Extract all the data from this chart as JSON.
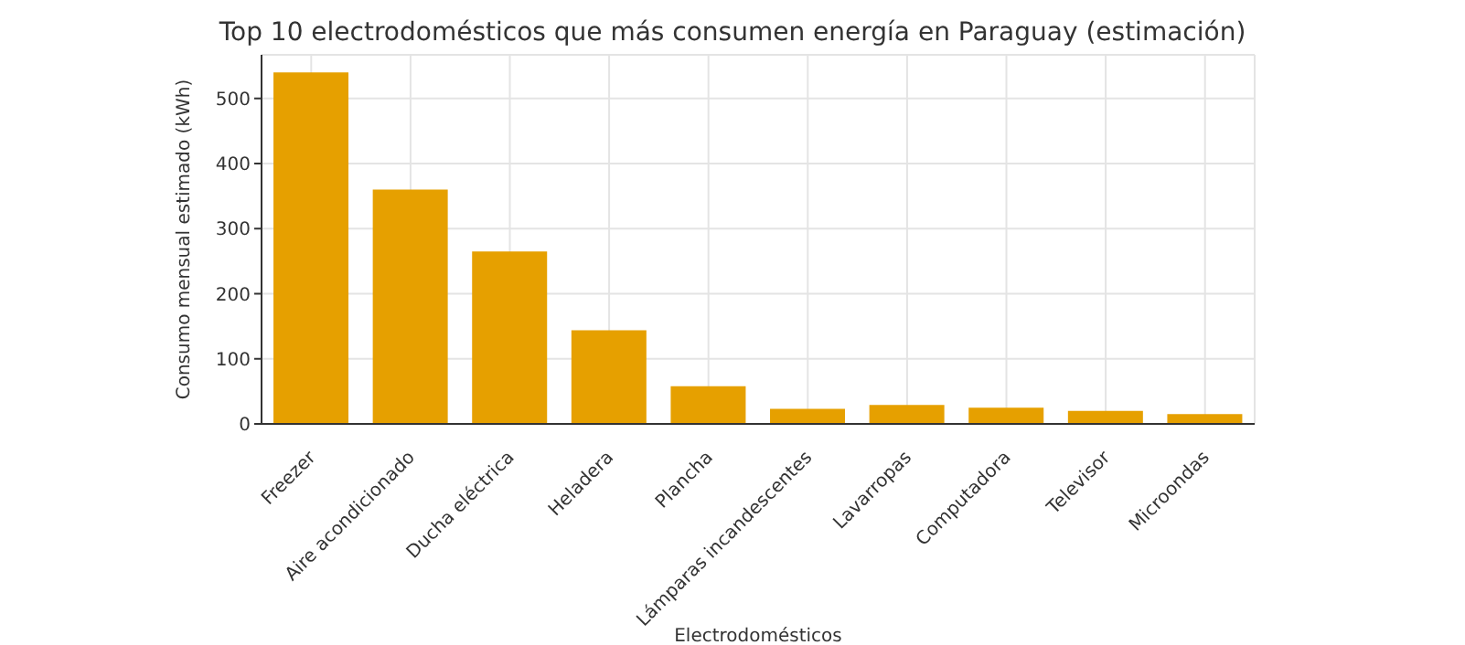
{
  "chart_data": {
    "type": "bar",
    "title": "Top 10 electrodomésticos que más consumen energía en Paraguay (estimación)",
    "xlabel": "Electrodomésticos",
    "ylabel": "Consumo mensual estimado (kWh)",
    "categories": [
      "Freezer",
      "Aire acondicionado",
      "Ducha eléctrica",
      "Heladera",
      "Plancha",
      "Lámparas incandescentes",
      "Lavarropas",
      "Computadora",
      "Televisor",
      "Microondas"
    ],
    "values": [
      540,
      360,
      265,
      144,
      58,
      23,
      29,
      25,
      20,
      15
    ],
    "color": "#e6a000",
    "ylim": [
      0,
      567
    ],
    "yticks": [
      0,
      100,
      200,
      300,
      400,
      500
    ],
    "grid": true,
    "legend": false
  }
}
